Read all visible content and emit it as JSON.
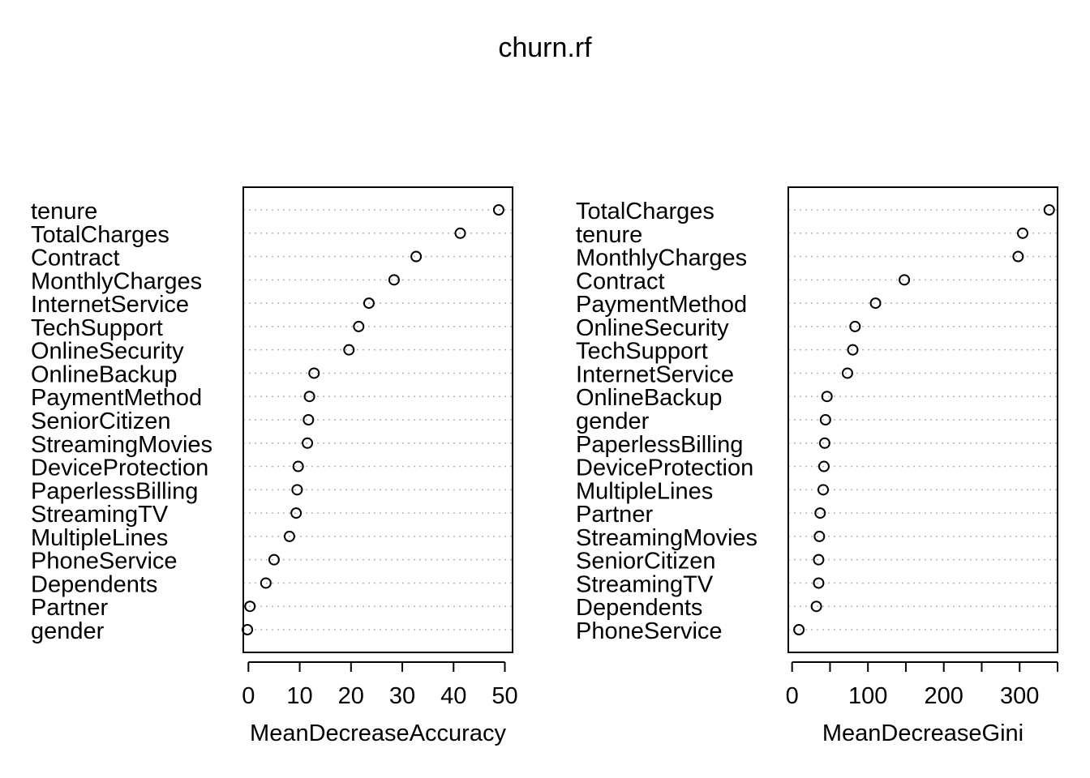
{
  "title": "churn.rf",
  "chart_data": [
    {
      "type": "scatter",
      "xlabel": "MeanDecreaseAccuracy",
      "xlim": [
        -1,
        51.5
      ],
      "xticks": [
        0,
        10,
        20,
        30,
        40,
        50
      ],
      "grid": "dotted horizontal guide per variable",
      "points": [
        {
          "label": "tenure",
          "value": 48.8
        },
        {
          "label": "TotalCharges",
          "value": 41.3
        },
        {
          "label": "Contract",
          "value": 32.7
        },
        {
          "label": "MonthlyCharges",
          "value": 28.4
        },
        {
          "label": "InternetService",
          "value": 23.5
        },
        {
          "label": "TechSupport",
          "value": 21.5
        },
        {
          "label": "OnlineSecurity",
          "value": 19.6
        },
        {
          "label": "OnlineBackup",
          "value": 12.8
        },
        {
          "label": "PaymentMethod",
          "value": 11.9
        },
        {
          "label": "SeniorCitizen",
          "value": 11.7
        },
        {
          "label": "StreamingMovies",
          "value": 11.5
        },
        {
          "label": "DeviceProtection",
          "value": 9.7
        },
        {
          "label": "PaperlessBilling",
          "value": 9.5
        },
        {
          "label": "StreamingTV",
          "value": 9.3
        },
        {
          "label": "MultipleLines",
          "value": 8.0
        },
        {
          "label": "PhoneService",
          "value": 5.0
        },
        {
          "label": "Dependents",
          "value": 3.4
        },
        {
          "label": "Partner",
          "value": 0.3
        },
        {
          "label": "gender",
          "value": -0.2
        }
      ]
    },
    {
      "type": "scatter",
      "xlabel": "MeanDecreaseGini",
      "xlim": [
        -5,
        350
      ],
      "xticks": [
        0,
        50,
        100,
        150,
        200,
        250,
        300,
        350
      ],
      "xticklabels": [
        "0",
        "",
        "100",
        "",
        "200",
        "",
        "300",
        ""
      ],
      "grid": "dotted horizontal guide per variable",
      "points": [
        {
          "label": "TotalCharges",
          "value": 339
        },
        {
          "label": "tenure",
          "value": 304
        },
        {
          "label": "MonthlyCharges",
          "value": 298
        },
        {
          "label": "Contract",
          "value": 148
        },
        {
          "label": "PaymentMethod",
          "value": 110
        },
        {
          "label": "OnlineSecurity",
          "value": 83
        },
        {
          "label": "TechSupport",
          "value": 80
        },
        {
          "label": "InternetService",
          "value": 73
        },
        {
          "label": "OnlineBackup",
          "value": 46
        },
        {
          "label": "gender",
          "value": 44
        },
        {
          "label": "PaperlessBilling",
          "value": 43
        },
        {
          "label": "DeviceProtection",
          "value": 42
        },
        {
          "label": "MultipleLines",
          "value": 41
        },
        {
          "label": "Partner",
          "value": 37
        },
        {
          "label": "StreamingMovies",
          "value": 36
        },
        {
          "label": "SeniorCitizen",
          "value": 35
        },
        {
          "label": "StreamingTV",
          "value": 35
        },
        {
          "label": "Dependents",
          "value": 32
        },
        {
          "label": "PhoneService",
          "value": 9
        }
      ]
    }
  ]
}
